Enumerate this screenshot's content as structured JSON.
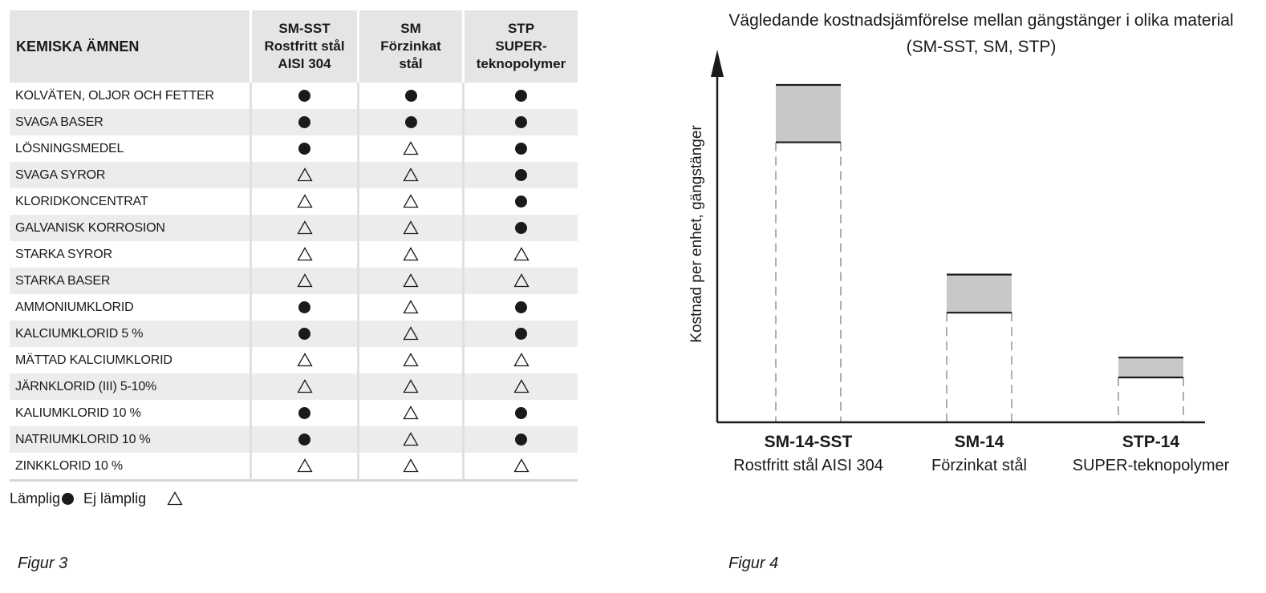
{
  "table": {
    "header_name": "KEMISKA ÄMNEN",
    "materials": [
      {
        "lines": [
          "SM-SST",
          "Rostfritt stål",
          "AISI 304"
        ]
      },
      {
        "lines": [
          "SM",
          "Förzinkat",
          "stål"
        ]
      },
      {
        "lines": [
          "STP",
          "SUPER-",
          "teknopolymer"
        ]
      }
    ],
    "rows": [
      {
        "name": "KOLVÄTEN, OLJOR OCH FETTER",
        "values": [
          "suitable",
          "suitable",
          "suitable"
        ]
      },
      {
        "name": "SVAGA BASER",
        "values": [
          "suitable",
          "suitable",
          "suitable"
        ]
      },
      {
        "name": "LÖSNINGSMEDEL",
        "values": [
          "suitable",
          "unsuitable",
          "suitable"
        ]
      },
      {
        "name": "SVAGA SYROR",
        "values": [
          "unsuitable",
          "unsuitable",
          "suitable"
        ]
      },
      {
        "name": "KLORIDKONCENTRAT",
        "values": [
          "unsuitable",
          "unsuitable",
          "suitable"
        ]
      },
      {
        "name": "GALVANISK KORROSION",
        "values": [
          "unsuitable",
          "unsuitable",
          "suitable"
        ]
      },
      {
        "name": "STARKA SYROR",
        "values": [
          "unsuitable",
          "unsuitable",
          "unsuitable"
        ]
      },
      {
        "name": "STARKA BASER",
        "values": [
          "unsuitable",
          "unsuitable",
          "unsuitable"
        ]
      },
      {
        "name": "AMMONIUMKLORID",
        "values": [
          "suitable",
          "unsuitable",
          "suitable"
        ]
      },
      {
        "name": "KALCIUMKLORID 5 %",
        "values": [
          "suitable",
          "unsuitable",
          "suitable"
        ]
      },
      {
        "name": "MÄTTAD KALCIUMKLORID",
        "values": [
          "unsuitable",
          "unsuitable",
          "unsuitable"
        ]
      },
      {
        "name": "JÄRNKLORID (III) 5-10%",
        "values": [
          "unsuitable",
          "unsuitable",
          "unsuitable"
        ]
      },
      {
        "name": "KALIUMKLORID 10 %",
        "values": [
          "suitable",
          "unsuitable",
          "suitable"
        ]
      },
      {
        "name": "NATRIUMKLORID 10 %",
        "values": [
          "suitable",
          "unsuitable",
          "suitable"
        ]
      },
      {
        "name": "ZINKKLORID 10 %",
        "values": [
          "unsuitable",
          "unsuitable",
          "unsuitable"
        ]
      }
    ]
  },
  "legend": {
    "suitable_label": "Lämplig",
    "unsuitable_label": "Ej lämplig",
    "suitable_icon": "filled-circle-icon",
    "unsuitable_icon": "triangle-outline-icon"
  },
  "captions": {
    "fig3": "Figur 3",
    "fig4": "Figur 4"
  },
  "colors": {
    "band_fill": "#c8c8c8",
    "symbol": "#1a1a1a",
    "dashed_line": "#9a9a9a"
  },
  "chart_data": {
    "type": "bar",
    "title": "Vägledande kostnadsjämförelse mellan gängstänger i olika material",
    "subtitle": "(SM-SST, SM, STP)",
    "ylabel": "Kostnad per enhet, gängstänger",
    "ylim": [
      0,
      100
    ],
    "axis_ticks": false,
    "grid": false,
    "categories": [
      {
        "code": "SM-14-SST",
        "material": "Rostfritt stål AISI 304"
      },
      {
        "code": "SM-14",
        "material": "Förzinkat stål"
      },
      {
        "code": "STP-14",
        "material": "SUPER-teknopolymer"
      }
    ],
    "ranges": [
      {
        "low": 83,
        "high": 100
      },
      {
        "low": 32.5,
        "high": 43.8
      },
      {
        "low": 13.3,
        "high": 19.2
      }
    ]
  }
}
